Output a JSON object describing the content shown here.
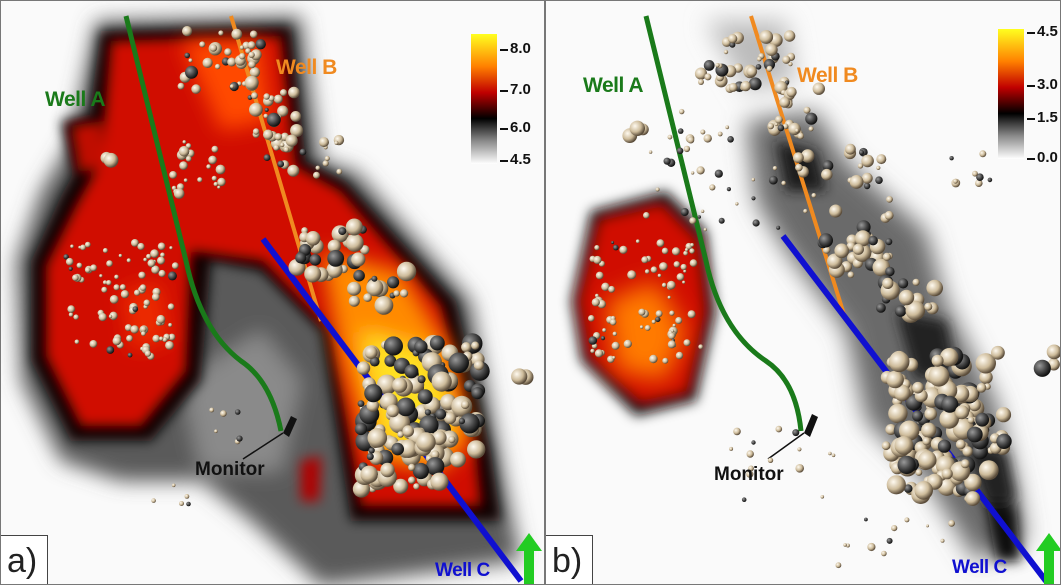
{
  "panels": [
    {
      "letter": "a)",
      "wells": {
        "a": "Well A",
        "b": "Well B",
        "c": "Well C"
      },
      "monitor": "Monitor",
      "colorbar": {
        "ticks": [
          "8.0",
          "7.0",
          "6.0",
          "4.5"
        ],
        "colors": [
          "#ffff20",
          "#ff8000",
          "#c00000",
          "#000000",
          "#888888",
          "#ffffff"
        ]
      },
      "colors": {
        "well_a": "#1a7a1a",
        "well_b": "#f08a20",
        "well_c": "#1010d0",
        "north_arrow": "#22cc22"
      }
    },
    {
      "letter": "b)",
      "wells": {
        "a": "Well A",
        "b": "Well B",
        "c": "Well C"
      },
      "monitor": "Monitor",
      "colorbar": {
        "ticks": [
          "4.5",
          "3.0",
          "1.5",
          "0.0"
        ],
        "colors": [
          "#ffff20",
          "#ff8000",
          "#c00000",
          "#000000",
          "#888888",
          "#ffffff"
        ]
      },
      "colors": {
        "well_a": "#1a7a1a",
        "well_b": "#f08a20",
        "well_c": "#1010d0",
        "north_arrow": "#22cc22"
      }
    }
  ]
}
